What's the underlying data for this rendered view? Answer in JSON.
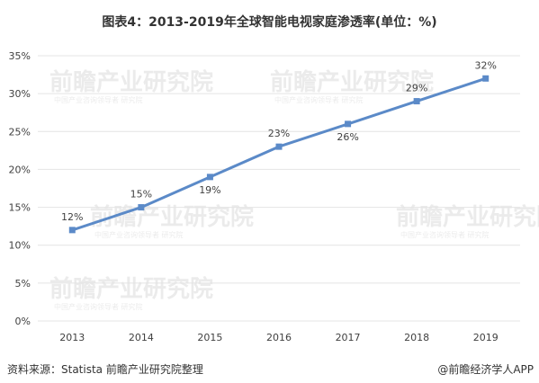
{
  "title": "图表4：2013-2019年全球智能电视家庭渗透率(单位：%)",
  "source_left": "资料来源：Statista 前瞻产业研究院整理",
  "source_right": "@前瞻经济学人APP",
  "watermark": {
    "text": "前瞻产业研究院",
    "subtext": "中国产业咨询领导者 研究院"
  },
  "colors": {
    "line": "#5b8ac8",
    "marker": "#5b8ac8",
    "grid": "#e4e4e4",
    "text": "#404040"
  },
  "chart_data": {
    "type": "line",
    "title": "图表4：2013-2019年全球智能电视家庭渗透率(单位：%)",
    "xlabel": "",
    "ylabel": "",
    "categories": [
      "2013",
      "2014",
      "2015",
      "2016",
      "2017",
      "2018",
      "2019"
    ],
    "series": [
      {
        "values": [
          12,
          15,
          19,
          23,
          26,
          29,
          32
        ],
        "labels": [
          "12%",
          "15%",
          "19%",
          "23%",
          "26%",
          "29%",
          "32%"
        ]
      }
    ],
    "ylim": [
      0,
      35
    ],
    "yticks": [
      0,
      5,
      10,
      15,
      20,
      25,
      30,
      35
    ],
    "ytick_labels": [
      "0%",
      "5%",
      "10%",
      "15%",
      "20%",
      "25%",
      "30%",
      "35%"
    ],
    "grid": true,
    "legend": "none"
  }
}
